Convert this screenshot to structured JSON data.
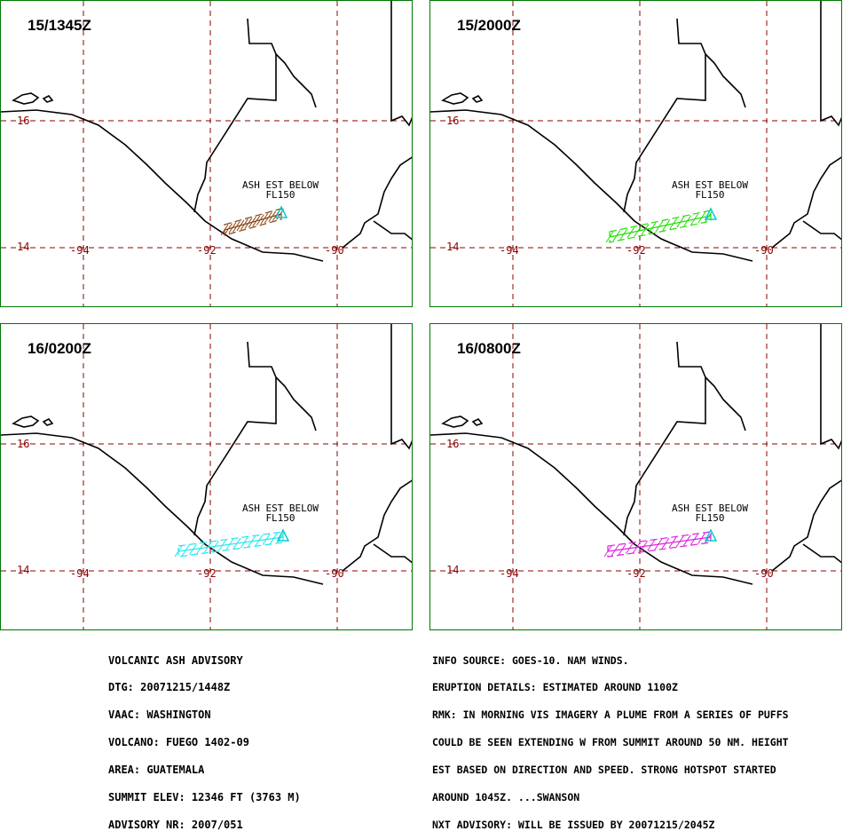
{
  "panels": [
    {
      "time": "15/1345Z",
      "plume_color": "#8b4513",
      "vent_color": "#00cfcf"
    },
    {
      "time": "15/2000Z",
      "plume_color": "#22dd00",
      "vent_color": "#00cfcf"
    },
    {
      "time": "16/0200Z",
      "plume_color": "#22e5ee",
      "vent_color": "#00cfcf"
    },
    {
      "time": "16/0800Z",
      "plume_color": "#dd22dd",
      "vent_color": "#00cfcf"
    }
  ],
  "ash_label": {
    "line1": "ASH EST BELOW",
    "line2": "FL150"
  },
  "grid_labels": {
    "lat16": "16",
    "lat14": "14",
    "lon94": "-94",
    "lon92": "-92",
    "lon90": "-90"
  },
  "advisory_left": [
    "VOLCANIC ASH ADVISORY",
    "DTG: 20071215/1448Z",
    "VAAC: WASHINGTON",
    "VOLCANO: FUEGO 1402-09",
    "AREA: GUATEMALA",
    "SUMMIT ELEV: 12346 FT (3763 M)",
    "ADVISORY NR: 2007/051"
  ],
  "advisory_right": [
    "INFO SOURCE: GOES-10. NAM WINDS.",
    "ERUPTION DETAILS: ESTIMATED AROUND 1100Z",
    "RMK: IN MORNING VIS IMAGERY A PLUME FROM A SERIES OF PUFFS",
    "COULD BE SEEN EXTENDING W FROM SUMMIT AROUND 50 NM. HEIGHT",
    "EST BASED ON DIRECTION AND SPEED. STRONG HOTSPOT STARTED",
    "AROUND 1045Z. ...SWANSON",
    "NXT ADVISORY: WILL BE ISSUED BY 20071215/2045Z"
  ]
}
